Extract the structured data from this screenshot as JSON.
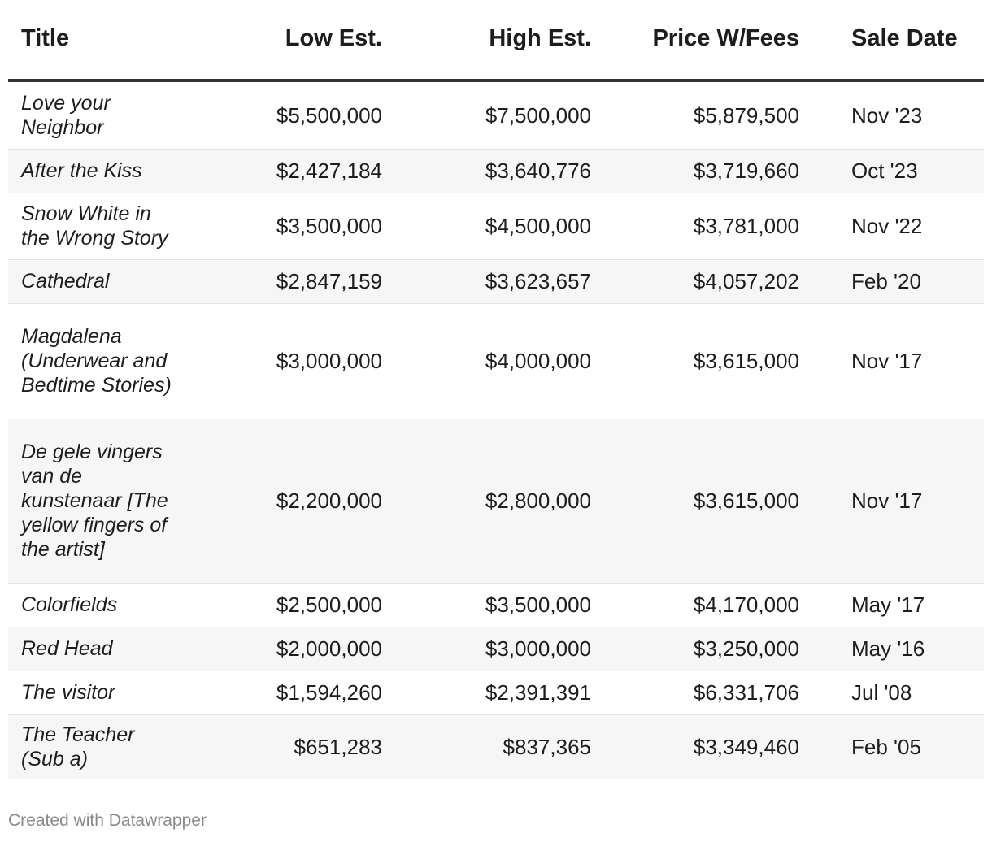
{
  "chart_data": {
    "type": "table",
    "columns": [
      "Title",
      "Low Est.",
      "High Est.",
      "Price W/Fees",
      "Sale Date"
    ],
    "rows": [
      {
        "title": "Love your Neighbor",
        "low": "$5,500,000",
        "high": "$7,500,000",
        "price": "$5,879,500",
        "date": "Nov '23"
      },
      {
        "title": "After the Kiss",
        "low": "$2,427,184",
        "high": "$3,640,776",
        "price": "$3,719,660",
        "date": "Oct '23"
      },
      {
        "title": "Snow White in the Wrong Story",
        "low": "$3,500,000",
        "high": "$4,500,000",
        "price": "$3,781,000",
        "date": "Nov '22"
      },
      {
        "title": "Cathedral",
        "low": "$2,847,159",
        "high": "$3,623,657",
        "price": "$4,057,202",
        "date": "Feb '20"
      },
      {
        "title": "Magdalena (Underwear and Bedtime Stories)",
        "low": "$3,000,000",
        "high": "$4,000,000",
        "price": "$3,615,000",
        "date": "Nov '17"
      },
      {
        "title": "De gele vingers van de kunstenaar [The yellow fingers of the artist]",
        "low": "$2,200,000",
        "high": "$2,800,000",
        "price": "$3,615,000",
        "date": "Nov '17"
      },
      {
        "title": "Colorfields",
        "low": "$2,500,000",
        "high": "$3,500,000",
        "price": "$4,170,000",
        "date": "May '17"
      },
      {
        "title": "Red Head",
        "low": "$2,000,000",
        "high": "$3,000,000",
        "price": "$3,250,000",
        "date": "May '16"
      },
      {
        "title": "The visitor",
        "low": "$1,594,260",
        "high": "$2,391,391",
        "price": "$6,331,706",
        "date": "Jul '08"
      },
      {
        "title": "The Teacher (Sub a)",
        "low": "$651,283",
        "high": "$837,365",
        "price": "$3,349,460",
        "date": "Feb '05"
      }
    ]
  },
  "footer": {
    "credit": "Created with Datawrapper"
  },
  "colors": {
    "text": "#1d1d1d",
    "header_rule": "#333333",
    "stripe": "#f6f6f6",
    "row_rule": "#e3e3e3",
    "footer_text": "#8a8a8a"
  }
}
